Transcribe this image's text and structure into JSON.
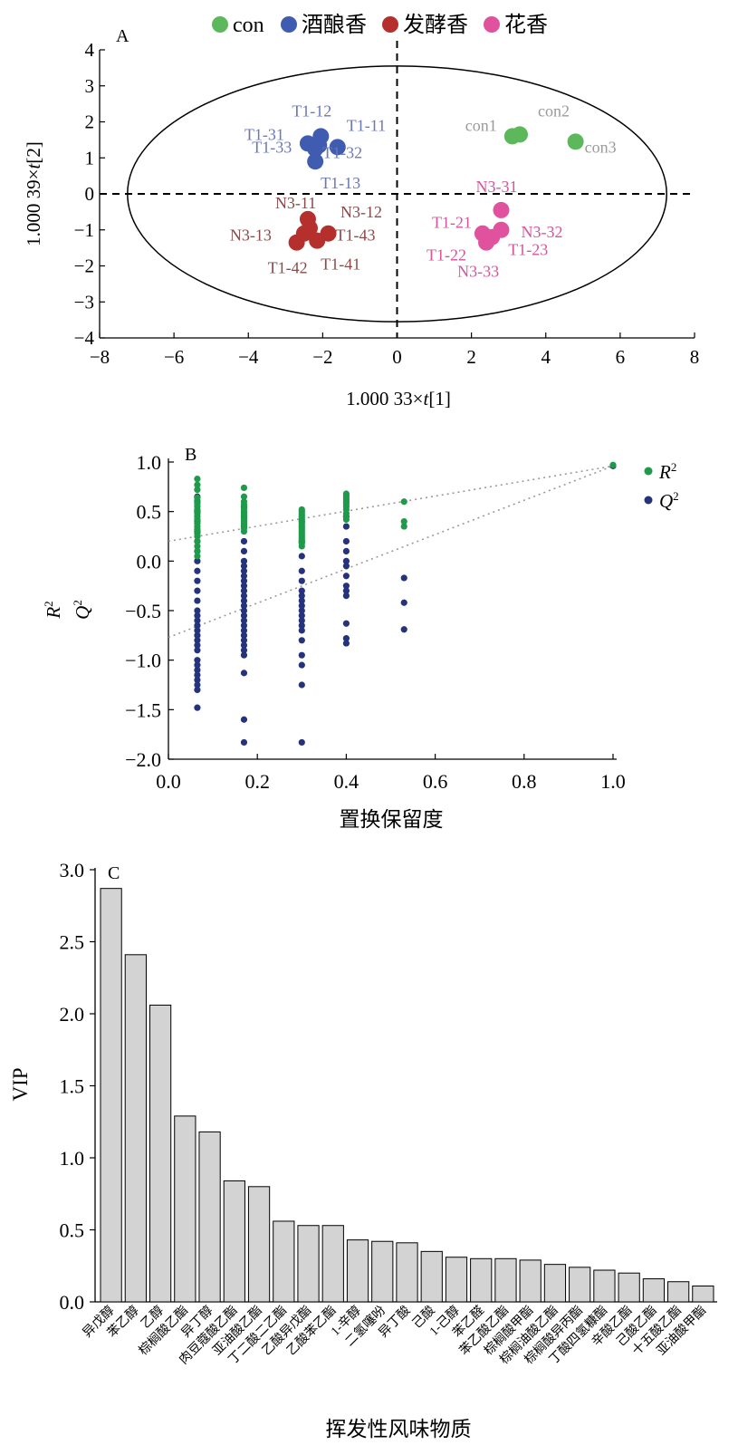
{
  "chart_data": [
    {
      "type": "scatter",
      "panel_label": "A",
      "xlabel_prefix": "1.000 33×",
      "xlabel_var": "t",
      "xlabel_suffix": "[1]",
      "ylabel_prefix": "1.000 39×",
      "ylabel_var": "t",
      "ylabel_suffix": "[2]",
      "xlim": [
        -8,
        8
      ],
      "ylim": [
        -4,
        4
      ],
      "xticks": [
        -8,
        -6,
        -4,
        -2,
        0,
        2,
        4,
        6,
        8
      ],
      "yticks": [
        -4,
        -3,
        -2,
        -1,
        0,
        1,
        2,
        3,
        4
      ],
      "ellipse": {
        "cx": 0,
        "cy": 0,
        "rx": 7.25,
        "ry": 3.55
      },
      "legend_position": "top",
      "series": [
        {
          "name": "con",
          "color": "#5db85b",
          "label_color": "#9a9a9a",
          "points": [
            {
              "label": "con1",
              "x": 3.1,
              "y": 1.6
            },
            {
              "label": "con2",
              "x": 3.3,
              "y": 1.65
            },
            {
              "label": "con3",
              "x": 4.8,
              "y": 1.45
            }
          ]
        },
        {
          "name": "酒酿香",
          "color": "#3f5cb0",
          "label_color": "#6a78b6",
          "points": [
            {
              "label": "T1-12",
              "x": -2.05,
              "y": 1.6
            },
            {
              "label": "T1-31",
              "x": -2.4,
              "y": 1.4
            },
            {
              "label": "T1-33",
              "x": -2.1,
              "y": 1.35
            },
            {
              "label": "T1-11",
              "x": -1.6,
              "y": 1.3
            },
            {
              "label": "T1-32",
              "x": -2.2,
              "y": 1.25
            },
            {
              "label": "T1-13",
              "x": -2.2,
              "y": 0.9
            }
          ]
        },
        {
          "name": "发酵香",
          "color": "#b5302c",
          "label_color": "#8a4a4a",
          "points": [
            {
              "label": "N3-11",
              "x": -2.4,
              "y": -0.7
            },
            {
              "label": "N3-12",
              "x": -2.35,
              "y": -0.95
            },
            {
              "label": "N3-13",
              "x": -2.5,
              "y": -1.1
            },
            {
              "label": "T1-43",
              "x": -1.85,
              "y": -1.1
            },
            {
              "label": "T1-41",
              "x": -2.15,
              "y": -1.3
            },
            {
              "label": "T1-42",
              "x": -2.7,
              "y": -1.35
            }
          ]
        },
        {
          "name": "花香",
          "color": "#e0529d",
          "label_color": "#d4559b",
          "points": [
            {
              "label": "N3-31",
              "x": 2.8,
              "y": -0.45
            },
            {
              "label": "T1-21",
              "x": 2.3,
              "y": -1.1
            },
            {
              "label": "N3-32",
              "x": 2.8,
              "y": -1.0
            },
            {
              "label": "T1-22",
              "x": 2.4,
              "y": -1.35
            },
            {
              "label": "T1-23",
              "x": 2.55,
              "y": -1.2
            },
            {
              "label": "N3-33",
              "x": 2.45,
              "y": -1.25
            }
          ]
        }
      ]
    },
    {
      "type": "scatter",
      "panel_label": "B",
      "xlabel": "置换保留度",
      "ylabel_r": "R",
      "ylabel_q": "Q",
      "ylabel_sup": "2",
      "xlim": [
        0.0,
        1.0
      ],
      "ylim": [
        -2.0,
        1.0
      ],
      "xticks": [
        "0.0",
        "0.2",
        "0.4",
        "0.6",
        "0.8",
        "1.0"
      ],
      "yticks": [
        "1.0",
        "0.5",
        "0.0",
        "−0.5",
        "−1.0",
        "−1.5",
        "−2.0"
      ],
      "legend_position": "top-right",
      "regression_lines": [
        {
          "series": "R2",
          "intercept": 0.2,
          "end": 0.96
        },
        {
          "series": "Q2",
          "intercept": -0.77,
          "end": 0.96
        }
      ],
      "series": [
        {
          "name": "R",
          "sup": "2",
          "color": "#1f9a4a",
          "groups": [
            {
              "x": 0.065,
              "y": [
                0.83,
                0.77,
                0.72,
                0.64,
                0.61,
                0.58,
                0.55,
                0.52,
                0.5,
                0.48,
                0.45,
                0.42,
                0.4,
                0.38,
                0.35,
                0.32,
                0.28,
                0.25,
                0.2,
                0.15,
                0.1,
                0.05
              ]
            },
            {
              "x": 0.17,
              "y": [
                0.74,
                0.65,
                0.6,
                0.57,
                0.55,
                0.53,
                0.5,
                0.48,
                0.46,
                0.44,
                0.42,
                0.4,
                0.38,
                0.36,
                0.33,
                0.3
              ]
            },
            {
              "x": 0.3,
              "y": [
                0.52,
                0.5,
                0.48,
                0.46,
                0.44,
                0.42,
                0.4,
                0.38,
                0.36,
                0.34,
                0.32,
                0.3,
                0.28,
                0.26,
                0.24,
                0.22,
                0.2,
                0.18,
                0.15
              ]
            },
            {
              "x": 0.4,
              "y": [
                0.68,
                0.66,
                0.64,
                0.62,
                0.6,
                0.58,
                0.55,
                0.52,
                0.48,
                0.45,
                0.42
              ]
            },
            {
              "x": 0.53,
              "y": [
                0.6,
                0.4,
                0.35
              ]
            },
            {
              "x": 1.0,
              "y": [
                0.97
              ]
            }
          ]
        },
        {
          "name": "Q",
          "sup": "2",
          "color": "#25337c",
          "groups": [
            {
              "x": 0.065,
              "y": [
                0.65,
                0.6,
                0.5,
                0.4,
                0.3,
                0.2,
                0.1,
                0.0,
                -0.1,
                -0.2,
                -0.3,
                -0.4,
                -0.5,
                -0.55,
                -0.6,
                -0.65,
                -0.7,
                -0.75,
                -0.8,
                -0.85,
                -0.9,
                -1.0,
                -1.05,
                -1.1,
                -1.15,
                -1.2,
                -1.25,
                -1.3,
                -1.48
              ]
            },
            {
              "x": 0.17,
              "y": [
                0.55,
                0.45,
                0.35,
                0.2,
                0.1,
                0.0,
                -0.05,
                -0.1,
                -0.15,
                -0.2,
                -0.25,
                -0.3,
                -0.35,
                -0.4,
                -0.45,
                -0.5,
                -0.55,
                -0.6,
                -0.65,
                -0.7,
                -0.75,
                -0.8,
                -0.85,
                -0.9,
                -0.95,
                -1.13,
                -1.6,
                -1.83
              ]
            },
            {
              "x": 0.3,
              "y": [
                0.4,
                0.2,
                0.05,
                -0.1,
                -0.2,
                -0.3,
                -0.35,
                -0.4,
                -0.45,
                -0.5,
                -0.55,
                -0.6,
                -0.65,
                -0.7,
                -0.8,
                -0.95,
                -1.05,
                -1.25,
                -1.83
              ]
            },
            {
              "x": 0.4,
              "y": [
                0.45,
                0.35,
                0.2,
                0.1,
                0.0,
                -0.05,
                -0.15,
                -0.25,
                -0.3,
                -0.35,
                -0.63,
                -0.78,
                -0.83
              ]
            },
            {
              "x": 0.53,
              "y": [
                -0.17,
                -0.42,
                -0.69
              ]
            },
            {
              "x": 1.0,
              "y": [
                0.96
              ]
            }
          ]
        }
      ]
    },
    {
      "type": "bar",
      "panel_label": "C",
      "xlabel": "挥发性风味物质",
      "ylabel": "VIP",
      "ylim": [
        0,
        3.0
      ],
      "yticks": [
        "3.0",
        "2.5",
        "2.0",
        "1.5",
        "1.0",
        "0.5",
        "0.0"
      ],
      "bar_color": "#d3d3d3",
      "categories": [
        "异戊醇",
        "苯乙醇",
        "乙醇",
        "棕榈酸乙酯",
        "异丁醇",
        "肉豆蔻酸乙酯",
        "亚油酸乙酯",
        "丁二酸二乙酯",
        "乙酸异戊酯",
        "乙酸苯乙酯",
        "1-辛醇",
        "二氢噻吩",
        "异丁酸",
        "己酸",
        "1-己醇",
        "苯乙醛",
        "苯乙酸乙酯",
        "棕榈酸甲酯",
        "棕榈油酸乙酯",
        "棕榈酸异丙酯",
        "丁酸四氢糠酯",
        "辛酸乙酯",
        "己酸乙酯",
        "十五酸乙酯",
        "亚油酸甲酯"
      ],
      "values": [
        2.87,
        2.41,
        2.06,
        1.29,
        1.18,
        0.84,
        0.8,
        0.56,
        0.53,
        0.53,
        0.43,
        0.42,
        0.41,
        0.35,
        0.31,
        0.3,
        0.3,
        0.29,
        0.26,
        0.24,
        0.22,
        0.2,
        0.16,
        0.14,
        0.11
      ]
    }
  ]
}
